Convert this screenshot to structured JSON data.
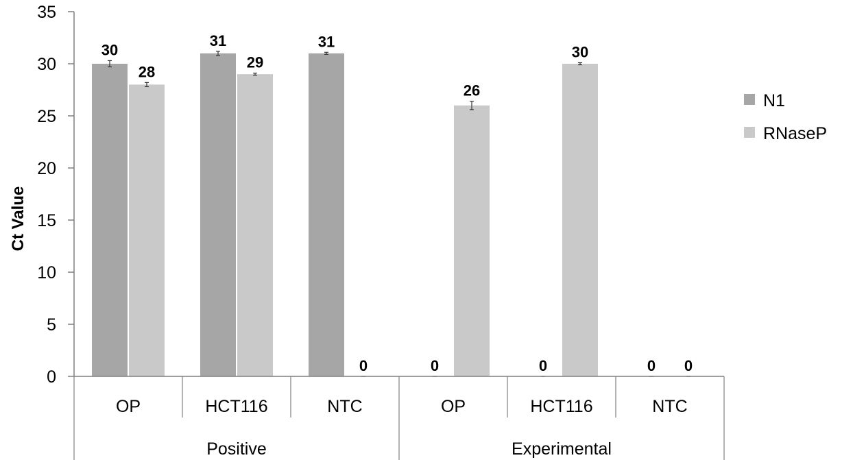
{
  "chart_data": {
    "type": "bar",
    "title": "",
    "ylabel": "Ct Value",
    "xlabel": "",
    "ylim": [
      0,
      35
    ],
    "yticks": [
      0,
      5,
      10,
      15,
      20,
      25,
      30,
      35
    ],
    "grid": false,
    "legend_position": "right",
    "groups": [
      {
        "name": "Positive",
        "categories": [
          "OP",
          "HCT116",
          "NTC"
        ]
      },
      {
        "name": "Experimental",
        "categories": [
          "OP",
          "HCT116",
          "NTC"
        ]
      }
    ],
    "categories": [
      "OP",
      "HCT116",
      "NTC",
      "OP",
      "HCT116",
      "NTC"
    ],
    "series": [
      {
        "name": "N1",
        "color": "#a6a6a6",
        "values": [
          30,
          31,
          31,
          0,
          0,
          0
        ],
        "errors": [
          0.3,
          0.2,
          0.1,
          0,
          0,
          0
        ]
      },
      {
        "name": "RNaseP",
        "color": "#c9c9c9",
        "values": [
          28,
          29,
          0,
          26,
          30,
          0
        ],
        "errors": [
          0.2,
          0.1,
          0,
          0.4,
          0.1,
          0
        ]
      }
    ],
    "data_labels": [
      [
        "30",
        "31",
        "31",
        "0",
        "0",
        "0"
      ],
      [
        "28",
        "29",
        "0",
        "26",
        "30",
        "0"
      ]
    ]
  }
}
